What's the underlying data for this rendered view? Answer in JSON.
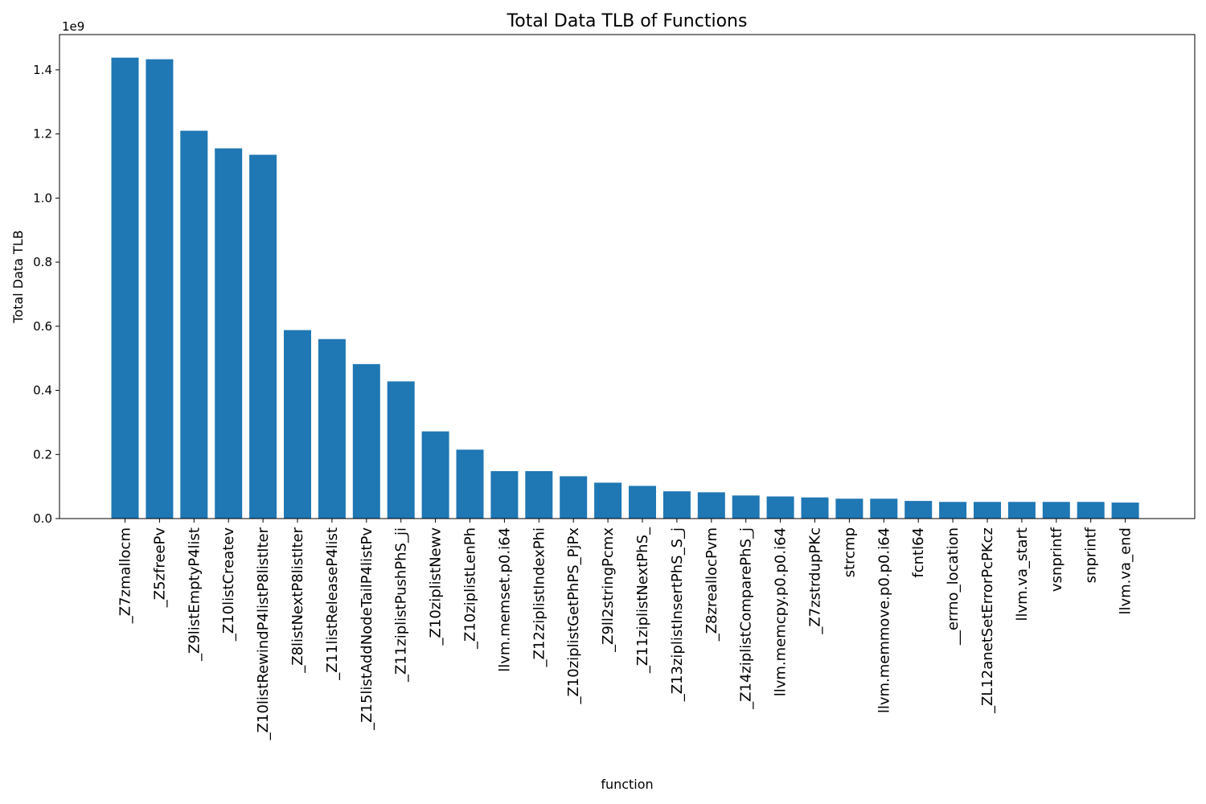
{
  "chart_data": {
    "type": "bar",
    "title": "Total Data TLB of Functions",
    "xlabel": "function",
    "ylabel": "Total Data TLB",
    "y_offset_label": "1e9",
    "y_scale": 1000000000,
    "ylim": [
      0,
      1.51
    ],
    "yticks": [
      0.0,
      0.2,
      0.4,
      0.6,
      0.8,
      1.0,
      1.2,
      1.4
    ],
    "ytick_labels": [
      "0.0",
      "0.2",
      "0.4",
      "0.6",
      "0.8",
      "1.0",
      "1.2",
      "1.4"
    ],
    "bar_color": "#1f77b4",
    "grid": false,
    "categories": [
      "_Z7zmallocm",
      "_Z5zfreePv",
      "_Z9listEmptyP4list",
      "_Z10listCreatev",
      "_Z10listRewindP4listP8listIter",
      "_Z8listNextP8listIter",
      "_Z11listReleaseP4list",
      "_Z15listAddNodeTailP4listPv",
      "_Z11ziplistPushPhS_ji",
      "_Z10ziplistNewv",
      "_Z10ziplistLenPh",
      "llvm.memset.p0.i64",
      "_Z12ziplistIndexPhi",
      "_Z10ziplistGetPhPS_PjPx",
      "_Z9ll2stringPcmx",
      "_Z11ziplistNextPhS_",
      "_Z13ziplistInsertPhS_S_j",
      "_Z8zreallocPvm",
      "_Z14ziplistComparePhS_j",
      "llvm.memcpy.p0.p0.i64",
      "_Z7zstrdupPKc",
      "strcmp",
      "llvm.memmove.p0.p0.i64",
      "fcntl64",
      "__errno_location",
      "_ZL12anetSetErrorPcPKcz",
      "llvm.va_start",
      "vsnprintf",
      "snprintf",
      "llvm.va_end"
    ],
    "values": [
      1.438,
      1.433,
      1.21,
      1.155,
      1.135,
      0.588,
      0.56,
      0.482,
      0.428,
      0.272,
      0.215,
      0.148,
      0.148,
      0.132,
      0.112,
      0.102,
      0.085,
      0.082,
      0.072,
      0.069,
      0.066,
      0.062,
      0.062,
      0.055,
      0.052,
      0.052,
      0.052,
      0.052,
      0.052,
      0.05
    ]
  }
}
